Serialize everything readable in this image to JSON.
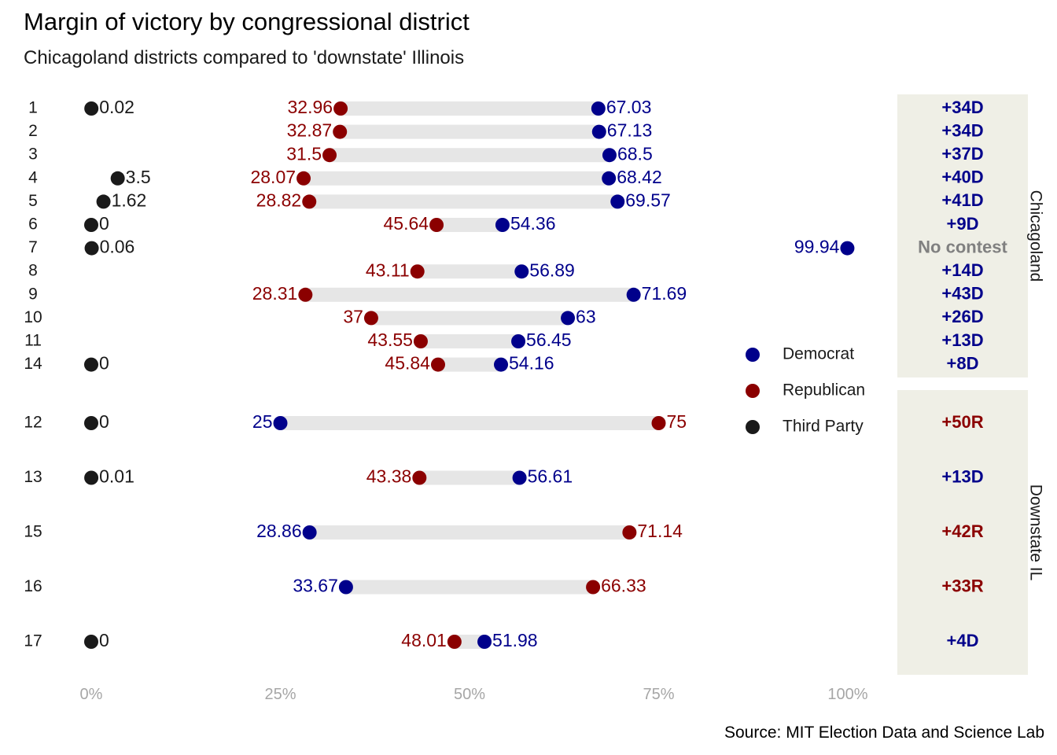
{
  "chart_data": {
    "type": "dot",
    "title": "Margin of victory by congressional district",
    "subtitle": "Chicagoland districts compared to 'downstate' Illinois",
    "caption": "Source: MIT Election Data and Science Lab",
    "x_ticks": [
      "0%",
      "25%",
      "50%",
      "75%",
      "100%"
    ],
    "xlim": [
      0,
      100
    ],
    "legend_placement": "right",
    "legend": [
      {
        "key": "Democrat",
        "label": "Democrat"
      },
      {
        "key": "Republican",
        "label": "Republican"
      },
      {
        "key": "ThirdParty",
        "label": "Third Party"
      }
    ],
    "colors": {
      "Democrat": "#00008b",
      "Republican": "#8b0000",
      "ThirdParty": "#1a1a1a",
      "segment": "#e6e6e6",
      "panel": "#efefe6",
      "nocontest": "#808080"
    },
    "panels": [
      {
        "name": "Chicagoland",
        "rows": [
          {
            "district": "1",
            "dem": 67.03,
            "dem_label": "67.03",
            "rep": 32.96,
            "rep_label": "32.96",
            "third": 0.02,
            "third_label": "0.02",
            "margin": "+34D",
            "margin_party": "Democrat"
          },
          {
            "district": "2",
            "dem": 67.13,
            "dem_label": "67.13",
            "rep": 32.87,
            "rep_label": "32.87",
            "third": null,
            "third_label": "",
            "margin": "+34D",
            "margin_party": "Democrat"
          },
          {
            "district": "3",
            "dem": 68.5,
            "dem_label": "68.5",
            "rep": 31.5,
            "rep_label": "31.5",
            "third": null,
            "third_label": "",
            "margin": "+37D",
            "margin_party": "Democrat"
          },
          {
            "district": "4",
            "dem": 68.42,
            "dem_label": "68.42",
            "rep": 28.07,
            "rep_label": "28.07",
            "third": 3.5,
            "third_label": "3.5",
            "margin": "+40D",
            "margin_party": "Democrat"
          },
          {
            "district": "5",
            "dem": 69.57,
            "dem_label": "69.57",
            "rep": 28.82,
            "rep_label": "28.82",
            "third": 1.62,
            "third_label": "1.62",
            "margin": "+41D",
            "margin_party": "Democrat"
          },
          {
            "district": "6",
            "dem": 54.36,
            "dem_label": "54.36",
            "rep": 45.64,
            "rep_label": "45.64",
            "third": 0,
            "third_label": "0",
            "margin": "+9D",
            "margin_party": "Democrat"
          },
          {
            "district": "7",
            "dem": 99.94,
            "dem_label": "99.94",
            "rep": null,
            "rep_label": "",
            "third": 0.06,
            "third_label": "0.06",
            "margin": "No contest",
            "margin_party": "none"
          },
          {
            "district": "8",
            "dem": 56.89,
            "dem_label": "56.89",
            "rep": 43.11,
            "rep_label": "43.11",
            "third": null,
            "third_label": "",
            "margin": "+14D",
            "margin_party": "Democrat"
          },
          {
            "district": "9",
            "dem": 71.69,
            "dem_label": "71.69",
            "rep": 28.31,
            "rep_label": "28.31",
            "third": null,
            "third_label": "",
            "margin": "+43D",
            "margin_party": "Democrat"
          },
          {
            "district": "10",
            "dem": 63,
            "dem_label": "63",
            "rep": 37,
            "rep_label": "37",
            "third": null,
            "third_label": "",
            "margin": "+26D",
            "margin_party": "Democrat"
          },
          {
            "district": "11",
            "dem": 56.45,
            "dem_label": "56.45",
            "rep": 43.55,
            "rep_label": "43.55",
            "third": null,
            "third_label": "",
            "margin": "+13D",
            "margin_party": "Democrat"
          },
          {
            "district": "14",
            "dem": 54.16,
            "dem_label": "54.16",
            "rep": 45.84,
            "rep_label": "45.84",
            "third": 0,
            "third_label": "0",
            "margin": "+8D",
            "margin_party": "Democrat"
          }
        ]
      },
      {
        "name": "Downstate IL",
        "rows": [
          {
            "district": "12",
            "dem": 25,
            "dem_label": "25",
            "rep": 75,
            "rep_label": "75",
            "third": 0,
            "third_label": "0",
            "margin": "+50R",
            "margin_party": "Republican"
          },
          {
            "district": "13",
            "dem": 56.61,
            "dem_label": "56.61",
            "rep": 43.38,
            "rep_label": "43.38",
            "third": 0.01,
            "third_label": "0.01",
            "margin": "+13D",
            "margin_party": "Democrat"
          },
          {
            "district": "15",
            "dem": 28.86,
            "dem_label": "28.86",
            "rep": 71.14,
            "rep_label": "71.14",
            "third": null,
            "third_label": "",
            "margin": "+42R",
            "margin_party": "Republican"
          },
          {
            "district": "16",
            "dem": 33.67,
            "dem_label": "33.67",
            "rep": 66.33,
            "rep_label": "66.33",
            "third": null,
            "third_label": "",
            "margin": "+33R",
            "margin_party": "Republican"
          },
          {
            "district": "17",
            "dem": 51.98,
            "dem_label": "51.98",
            "rep": 48.01,
            "rep_label": "48.01",
            "third": 0,
            "third_label": "0",
            "margin": "+4D",
            "margin_party": "Democrat"
          }
        ]
      }
    ]
  }
}
